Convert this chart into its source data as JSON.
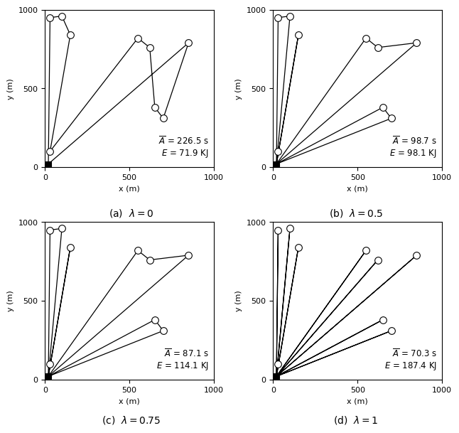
{
  "sensor_locations": [
    [
      30,
      950
    ],
    [
      100,
      960
    ],
    [
      150,
      840
    ],
    [
      30,
      100
    ],
    [
      550,
      820
    ],
    [
      620,
      760
    ],
    [
      850,
      790
    ],
    [
      650,
      380
    ],
    [
      700,
      310
    ]
  ],
  "base": [
    20,
    20
  ],
  "plot_a": {
    "caption": "(a)  $\\lambda = 0$",
    "A_bar": "226.5",
    "E": "71.9",
    "trajectory": [
      [
        20,
        20
      ],
      [
        30,
        950
      ],
      [
        100,
        960
      ],
      [
        150,
        840
      ],
      [
        30,
        100
      ],
      [
        550,
        820
      ],
      [
        620,
        760
      ],
      [
        650,
        380
      ],
      [
        700,
        310
      ],
      [
        850,
        790
      ],
      [
        20,
        20
      ]
    ]
  },
  "plot_b": {
    "caption": "(b)  $\\lambda = 0.5$",
    "A_bar": "98.7",
    "E": "98.1",
    "spokes": [
      [
        [
          20,
          20
        ],
        [
          30,
          950
        ],
        [
          100,
          960
        ],
        [
          20,
          20
        ]
      ],
      [
        [
          20,
          20
        ],
        [
          150,
          840
        ],
        [
          20,
          20
        ]
      ],
      [
        [
          20,
          20
        ],
        [
          30,
          100
        ],
        [
          20,
          20
        ]
      ],
      [
        [
          20,
          20
        ],
        [
          550,
          820
        ],
        [
          620,
          760
        ],
        [
          850,
          790
        ],
        [
          20,
          20
        ]
      ],
      [
        [
          20,
          20
        ],
        [
          650,
          380
        ],
        [
          700,
          310
        ],
        [
          20,
          20
        ]
      ]
    ]
  },
  "plot_c": {
    "caption": "(c)  $\\lambda = 0.75$",
    "A_bar": "87.1",
    "E": "114.1",
    "spokes": [
      [
        [
          20,
          20
        ],
        [
          30,
          950
        ],
        [
          100,
          960
        ],
        [
          20,
          20
        ]
      ],
      [
        [
          20,
          20
        ],
        [
          150,
          840
        ],
        [
          20,
          20
        ]
      ],
      [
        [
          20,
          20
        ],
        [
          30,
          100
        ],
        [
          20,
          20
        ]
      ],
      [
        [
          20,
          20
        ],
        [
          550,
          820
        ],
        [
          620,
          760
        ],
        [
          850,
          790
        ],
        [
          20,
          20
        ]
      ],
      [
        [
          20,
          20
        ],
        [
          650,
          380
        ],
        [
          700,
          310
        ],
        [
          20,
          20
        ]
      ]
    ]
  },
  "plot_d": {
    "caption": "(d)  $\\lambda = 1$",
    "A_bar": "70.3",
    "E": "187.4",
    "spokes": [
      [
        [
          20,
          20
        ],
        [
          30,
          950
        ],
        [
          20,
          20
        ]
      ],
      [
        [
          20,
          20
        ],
        [
          100,
          960
        ],
        [
          20,
          20
        ]
      ],
      [
        [
          20,
          20
        ],
        [
          150,
          840
        ],
        [
          20,
          20
        ]
      ],
      [
        [
          20,
          20
        ],
        [
          30,
          100
        ],
        [
          20,
          20
        ]
      ],
      [
        [
          20,
          20
        ],
        [
          550,
          820
        ],
        [
          20,
          20
        ]
      ],
      [
        [
          20,
          20
        ],
        [
          620,
          760
        ],
        [
          20,
          20
        ]
      ],
      [
        [
          20,
          20
        ],
        [
          850,
          790
        ],
        [
          20,
          20
        ]
      ],
      [
        [
          20,
          20
        ],
        [
          650,
          380
        ],
        [
          20,
          20
        ]
      ],
      [
        [
          20,
          20
        ],
        [
          700,
          310
        ],
        [
          20,
          20
        ]
      ]
    ]
  },
  "xlim": [
    0,
    1000
  ],
  "ylim": [
    0,
    1000
  ],
  "xticks": [
    0,
    500,
    1000
  ],
  "yticks": [
    0,
    500,
    1000
  ],
  "xlabel": "x (m)",
  "ylabel": "y (m)",
  "line_color": "black",
  "sensor_ms": 7,
  "base_ms": 6
}
